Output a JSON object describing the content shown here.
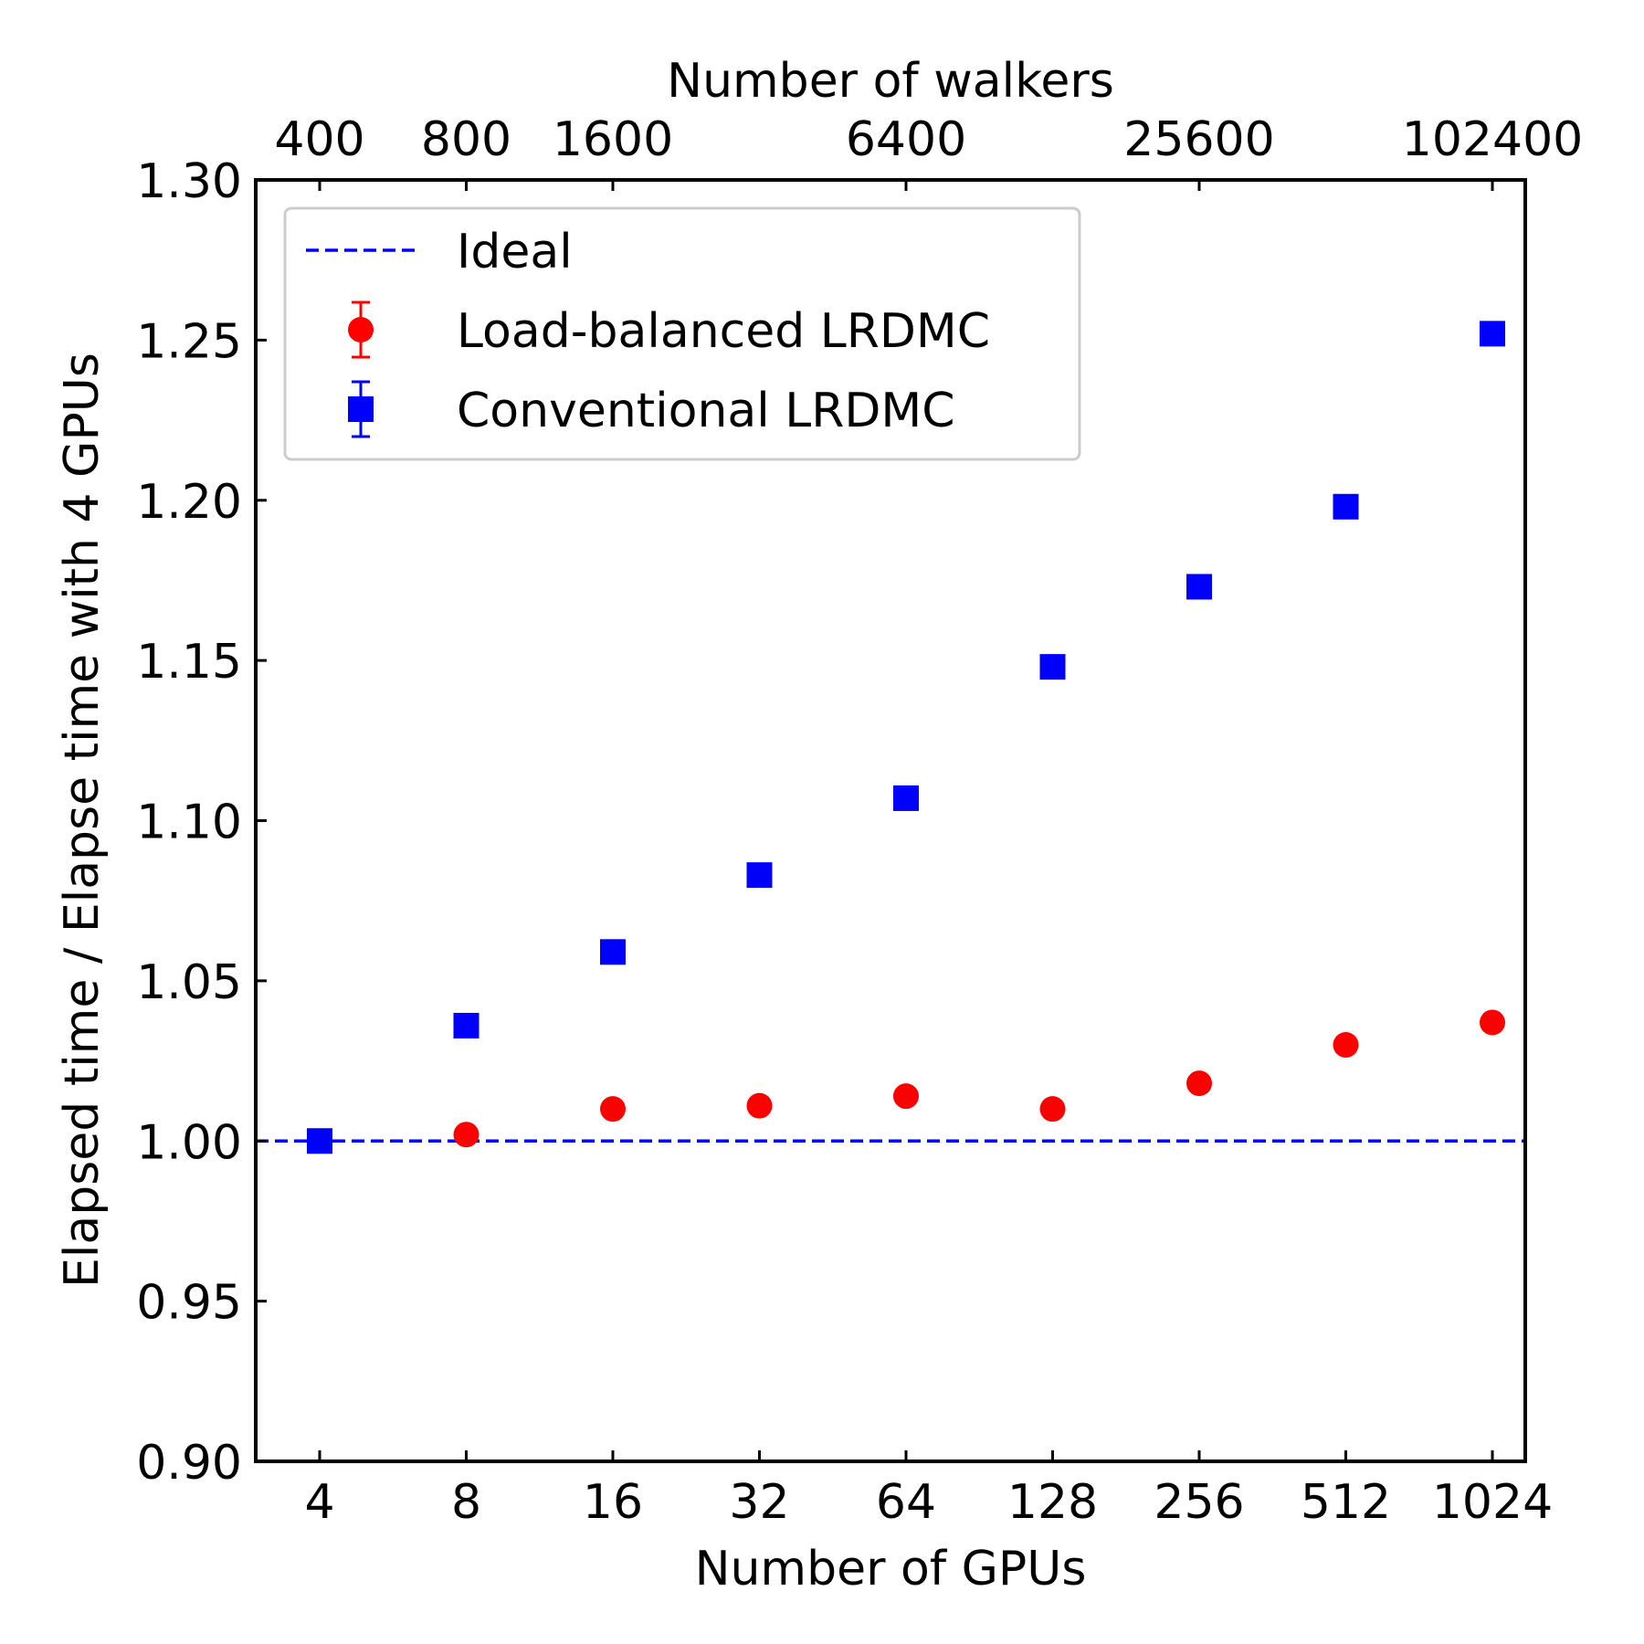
{
  "chart_data": {
    "type": "scatter",
    "x_scale": "log2",
    "x": [
      4,
      8,
      16,
      32,
      64,
      128,
      256,
      512,
      1024
    ],
    "xticklabels": [
      "4",
      "8",
      "16",
      "32",
      "64",
      "128",
      "256",
      "512",
      "1024"
    ],
    "xlabel": "Number of GPUs",
    "top_xlabel": "Number of walkers",
    "top_ticks": [
      {
        "gpus": 4,
        "label": "400"
      },
      {
        "gpus": 8,
        "label": "800"
      },
      {
        "gpus": 16,
        "label": "1600"
      },
      {
        "gpus": 64,
        "label": "6400"
      },
      {
        "gpus": 256,
        "label": "25600"
      },
      {
        "gpus": 1024,
        "label": "102400"
      }
    ],
    "ylabel": "Elapsed time / Elapse time with 4 GPUs",
    "ylim": [
      0.9,
      1.3
    ],
    "yticks": [
      0.9,
      0.95,
      1.0,
      1.05,
      1.1,
      1.15,
      1.2,
      1.25,
      1.3
    ],
    "yticklabels": [
      "0.90",
      "0.95",
      "1.00",
      "1.05",
      "1.10",
      "1.15",
      "1.20",
      "1.25",
      "1.30"
    ],
    "grid": false,
    "legend_position": "top-left",
    "ideal": {
      "name": "Ideal",
      "y": 1.0,
      "color": "#0000ff",
      "style": "dashed"
    },
    "series": [
      {
        "name": "Load-balanced LRDMC",
        "marker": "circle",
        "color": "#ff0000",
        "x": [
          8,
          16,
          32,
          64,
          128,
          256,
          512,
          1024
        ],
        "values": [
          1.002,
          1.01,
          1.011,
          1.014,
          1.01,
          1.018,
          1.03,
          1.037
        ]
      },
      {
        "name": "Conventional LRDMC",
        "marker": "square",
        "color": "#0000ff",
        "x": [
          4,
          8,
          16,
          32,
          64,
          128,
          256,
          512,
          1024
        ],
        "values": [
          1.0,
          1.036,
          1.059,
          1.083,
          1.107,
          1.148,
          1.173,
          1.198,
          1.252
        ]
      }
    ]
  }
}
